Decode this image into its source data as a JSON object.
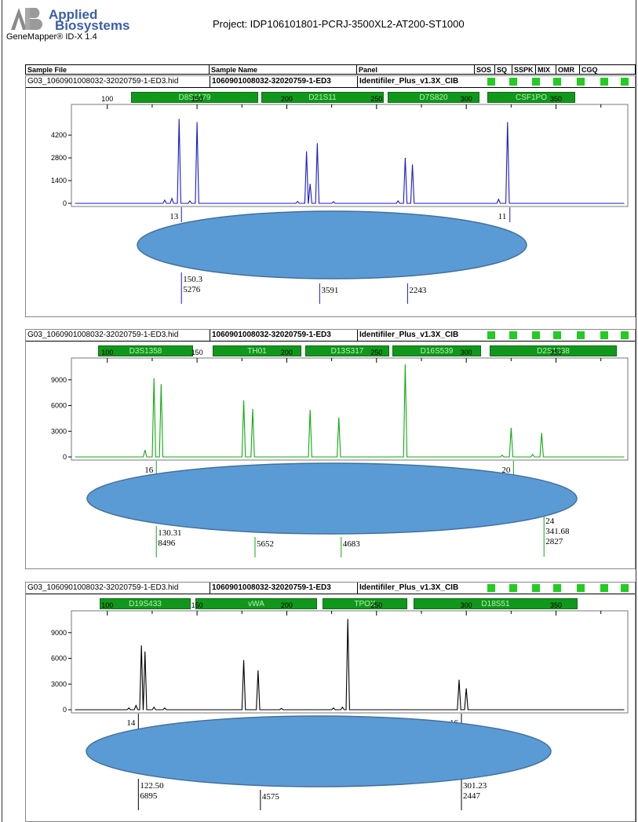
{
  "header": {
    "brand_line1": "Applied",
    "brand_line2": "Biosystems",
    "product": "GeneMapper® ID-X  1.4",
    "project": "Project: IDP106101801-PCRJ-3500XL2-AT200-ST1000"
  },
  "table_header": [
    "Sample File",
    "Sample Name",
    "Panel",
    "SOS",
    "SQ",
    "SSPK",
    "MIX",
    "OMR",
    "CGQ"
  ],
  "colors": {
    "blue": "#1a1acc",
    "green": "#11aa11",
    "black": "#000000",
    "marker_bg": "#11981c",
    "oval_fill": "#5b9bd5",
    "oval_stroke": "#41719c"
  },
  "panels": [
    {
      "sample_file": "G03_1060901008032-32020759-1-ED3.hid",
      "sample_name": "1060901008032-32020759-1-ED3",
      "panel": "Identifiler_Plus_v1.3X_CIB",
      "markers": [
        "D8S1179",
        "D21S11",
        "D7S820",
        "CSF1PO"
      ],
      "chart_data": {
        "type": "line",
        "color": "blue",
        "x_axis": {
          "min": 80,
          "max": 390,
          "ticks": [
            100,
            150,
            200,
            250,
            300,
            350
          ]
        },
        "y_axis": {
          "min": 0,
          "max": 5800,
          "ticks": [
            0,
            1400,
            2800,
            4200
          ]
        },
        "peaks": [
          [
            132,
            200
          ],
          [
            136,
            300
          ],
          [
            140,
            5200
          ],
          [
            146,
            150
          ],
          [
            150,
            5000
          ],
          [
            206,
            120
          ],
          [
            211,
            3200
          ],
          [
            213,
            1200
          ],
          [
            217,
            3700
          ],
          [
            226,
            100
          ],
          [
            262,
            150
          ],
          [
            266,
            2800
          ],
          [
            270,
            2400
          ],
          [
            318,
            250
          ],
          [
            323,
            5000
          ]
        ]
      },
      "labels": [
        {
          "x": 140,
          "texts": [
            "13"
          ]
        },
        {
          "x": 323,
          "texts": [
            "11"
          ]
        },
        {
          "x": 140,
          "texts": [
            "150.3",
            "5276"
          ]
        },
        {
          "x": 217,
          "texts": [
            "3591"
          ]
        },
        {
          "x": 266,
          "texts": [
            "2243"
          ]
        }
      ]
    },
    {
      "sample_file": "G03_1060901008032-32020759-1-ED3.hid",
      "sample_name": "1060901008032-32020759-1-ED3",
      "panel": "Identifiler_Plus_v1.3X_CIB",
      "markers": [
        "D3S1358",
        "TH01",
        "D13S317",
        "D16S539",
        "D2S1338"
      ],
      "chart_data": {
        "type": "line",
        "color": "green",
        "x_axis": {
          "min": 80,
          "max": 390,
          "ticks": [
            100,
            150,
            200,
            250,
            300,
            350
          ]
        },
        "y_axis": {
          "min": 0,
          "max": 11000,
          "ticks": [
            0,
            3000,
            6000,
            9000
          ]
        },
        "peaks": [
          [
            121,
            800
          ],
          [
            126,
            9200
          ],
          [
            130,
            8500
          ],
          [
            176,
            6600
          ],
          [
            181,
            5600
          ],
          [
            213,
            5500
          ],
          [
            229,
            4600
          ],
          [
            266,
            10800
          ],
          [
            320,
            200
          ],
          [
            325,
            3400
          ],
          [
            337,
            300
          ],
          [
            342,
            2800
          ]
        ]
      },
      "labels": [
        {
          "x": 126,
          "texts": [
            "16"
          ]
        },
        {
          "x": 325,
          "texts": [
            "20"
          ]
        },
        {
          "x": 342,
          "texts": [
            "24",
            "341.68",
            "2827"
          ]
        },
        {
          "x": 126,
          "texts": [
            "130.31",
            "8496"
          ]
        },
        {
          "x": 181,
          "texts": [
            "5652"
          ]
        },
        {
          "x": 229,
          "texts": [
            "4683"
          ]
        }
      ]
    },
    {
      "sample_file": "G03_1060901008032-32020759-1-ED3.hid",
      "sample_name": "1060901008032-32020759-1-ED3",
      "panel": "Identifiler_Plus_v1.3X_CIB",
      "markers": [
        "D19S433",
        "vWA",
        "TPOX",
        "D18S51"
      ],
      "chart_data": {
        "type": "line",
        "color": "black",
        "x_axis": {
          "min": 80,
          "max": 390,
          "ticks": [
            100,
            150,
            200,
            250,
            300,
            350
          ]
        },
        "y_axis": {
          "min": 0,
          "max": 11000,
          "ticks": [
            0,
            3000,
            6000,
            9000
          ]
        },
        "peaks": [
          [
            112,
            200
          ],
          [
            116,
            500
          ],
          [
            119,
            7500
          ],
          [
            121,
            6800
          ],
          [
            126,
            300
          ],
          [
            132,
            200
          ],
          [
            176,
            5800
          ],
          [
            184,
            4600
          ],
          [
            197,
            150
          ],
          [
            226,
            200
          ],
          [
            231,
            300
          ],
          [
            234,
            10600
          ],
          [
            296,
            3500
          ],
          [
            300,
            2500
          ]
        ]
      },
      "labels": [
        {
          "x": 116,
          "texts": [
            "14"
          ]
        },
        {
          "x": 296,
          "texts": [
            "16"
          ]
        },
        {
          "x": 116,
          "texts": [
            "122.50",
            "6895"
          ]
        },
        {
          "x": 184,
          "texts": [
            "4575"
          ]
        },
        {
          "x": 296,
          "texts": [
            "301.23",
            "2447"
          ]
        }
      ]
    }
  ]
}
